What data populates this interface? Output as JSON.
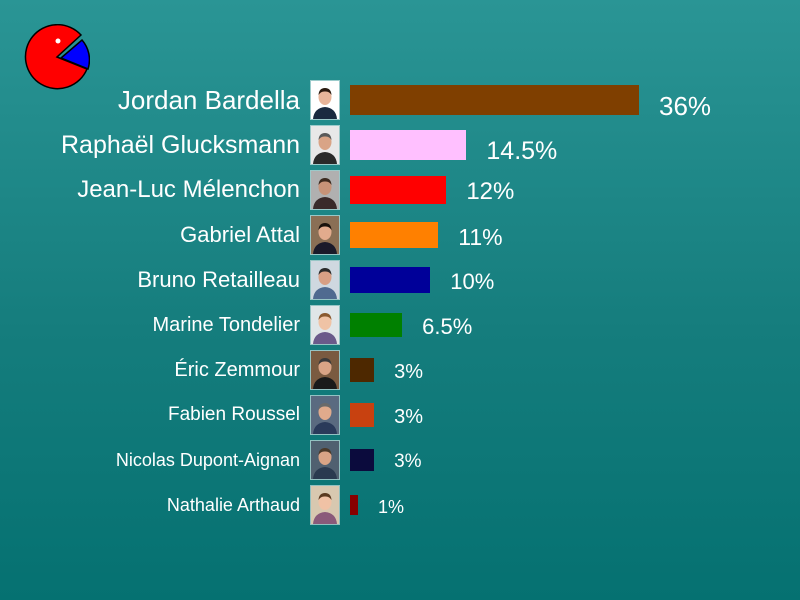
{
  "logo": {
    "icon": "pacman-pie-icon",
    "fill": "#ff0000",
    "slice": "#0000ff"
  },
  "chart_data": {
    "type": "bar",
    "orientation": "horizontal",
    "title": "",
    "xlabel": "",
    "ylabel": "",
    "xlim": [
      0,
      36
    ],
    "grid": false,
    "legend": "none",
    "categories": [
      "Jordan Bardella",
      "Raphaël Glucksmann",
      "Jean-Luc Mélenchon",
      "Gabriel Attal",
      "Bruno Retailleau",
      "Marine Tondelier",
      "Éric Zemmour",
      "Fabien Roussel",
      "Nicolas Dupont-Aignan",
      "Nathalie Arthaud"
    ],
    "values": [
      36,
      14.5,
      12,
      11,
      10,
      6.5,
      3,
      3,
      3,
      1
    ],
    "value_labels": [
      "36%",
      "14.5%",
      "12%",
      "11%",
      "10%",
      "6.5%",
      "3%",
      "3%",
      "3%",
      "1%"
    ],
    "colors": [
      "#7f3f00",
      "#ffc0ff",
      "#ff0000",
      "#ff8000",
      "#000099",
      "#008000",
      "#4d2800",
      "#c84110",
      "#0b0b3d",
      "#880000"
    ],
    "photo_icons": [
      "portrait-icon",
      "portrait-icon",
      "portrait-icon",
      "portrait-icon",
      "portrait-icon",
      "portrait-icon",
      "portrait-icon",
      "portrait-icon",
      "portrait-icon",
      "portrait-icon"
    ]
  }
}
